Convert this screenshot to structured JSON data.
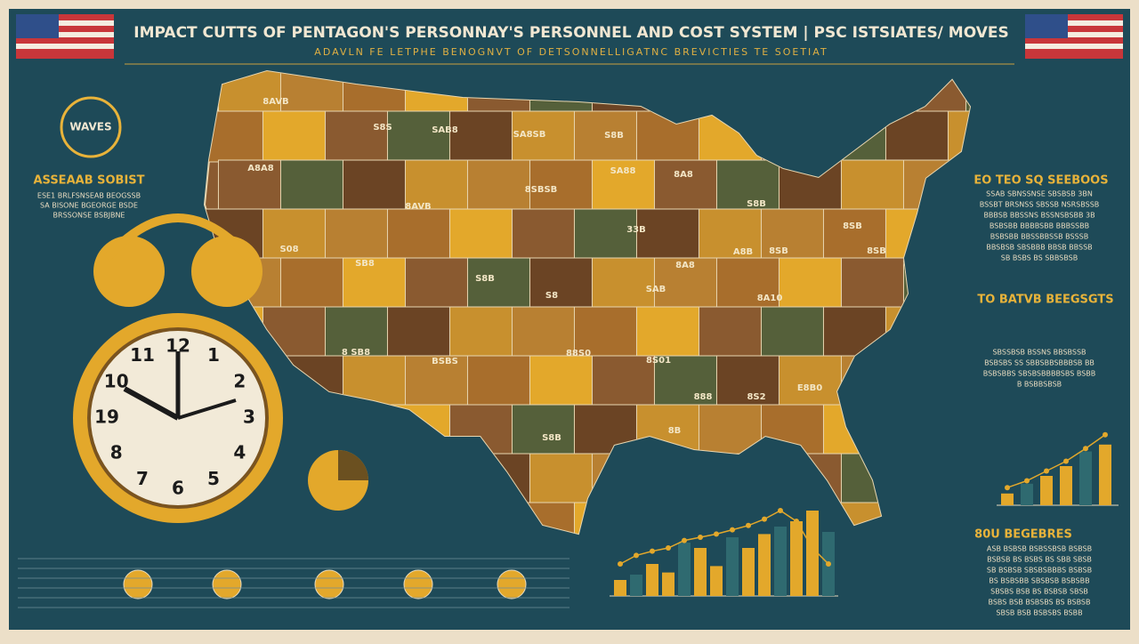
{
  "header": {
    "title": "IMPACT CUTTS OF PENTAGON'S PERSONNAY'S PERSONNEL AND COST SYSTEM | PSC ISTSIATES/ MOVES",
    "subtitle": "ADAVLN FE LETPHE BENOGNVT OF DETSONNELLIGATNC BREVICTIES TE SOETIAT"
  },
  "left": {
    "badge": "WAVES",
    "heading": "ASSEAAB SOBIST",
    "lines": [
      "ESE1 BRLFSNSEAB BEOGSSB",
      "SA BISONE BGEORGE BSDE",
      "BRSSONSE BSBJBNE"
    ]
  },
  "map": {
    "labels": [
      "8AVB",
      "S8S",
      "SAB8",
      "SA8SB",
      "S8B",
      "A8A8",
      "SA88",
      "8A8",
      "8SBSB",
      "8AVB",
      "S8B",
      "33B",
      "S08",
      "SB8",
      "8SB",
      "A8B",
      "8SB",
      "8SB",
      "8A8",
      "S8B",
      "SAB",
      "S8",
      "8A10",
      "8 SB8",
      "BSBS",
      "88S0",
      "8S01",
      "E8B0",
      "888",
      "8S2",
      "S8B",
      "8B"
    ]
  },
  "clock": {
    "numbers": [
      "12",
      "1",
      "2",
      "3",
      "4",
      "5",
      "6",
      "7",
      "8",
      "19",
      "10",
      "11"
    ]
  },
  "right": {
    "sections": [
      {
        "heading": "EO TEO SQ SEEBOOS",
        "lines": [
          "SSAB SBNSSNSE SBSBSB 3BN",
          "BSSBT BRSNSS SBSSB NSRSBSSB",
          "BBBSB BBSSNS BSSNSBSBB 3B",
          "BSBSBB BBBBSBB BBBSSBB",
          "BSBSBB BBSSBBSSB BSSSB",
          "BBSBSB SBSBBB BBSB BBSSB",
          "SB BSBS BS SBBSBSB"
        ]
      },
      {
        "heading": "TO BATVB BEEGSGTS",
        "lines": [
          "SBSSBSB BSSNS BBSBSSB",
          "BSBSBS SS SBBSBBSBBBSB BB",
          "BSBSBBS SBSBSBBBBSBS BSBB",
          "B BSBBSBSB"
        ]
      },
      {
        "heading": "80U BEGEBRES",
        "lines": [
          "ASB BSBSB BSBSSBSB BSBSB",
          "BSBSB BS BSBS BS SBB SBSB",
          "SB BSBSB SBSBSBBBS BSBSB",
          "BS BSBSBB SBSBSB BSBSBB",
          "SBSBS BSB BS BSBSB SBSB",
          "BSBS BSB BSBSBS BS BSBSB",
          "SBSB BSB BSBSBS BSBB"
        ]
      }
    ]
  },
  "bottom_chart": {
    "type": "bar",
    "values": [
      15,
      20,
      30,
      22,
      50,
      45,
      28,
      55,
      45,
      58,
      65,
      70,
      80,
      60
    ],
    "line": [
      30,
      38,
      42,
      45,
      52,
      55,
      58,
      62,
      66,
      72,
      80,
      70,
      45,
      30
    ]
  },
  "right_chart": {
    "type": "bar",
    "values": [
      12,
      22,
      30,
      40,
      55,
      62
    ],
    "line": [
      18,
      25,
      35,
      45,
      58,
      72
    ]
  }
}
